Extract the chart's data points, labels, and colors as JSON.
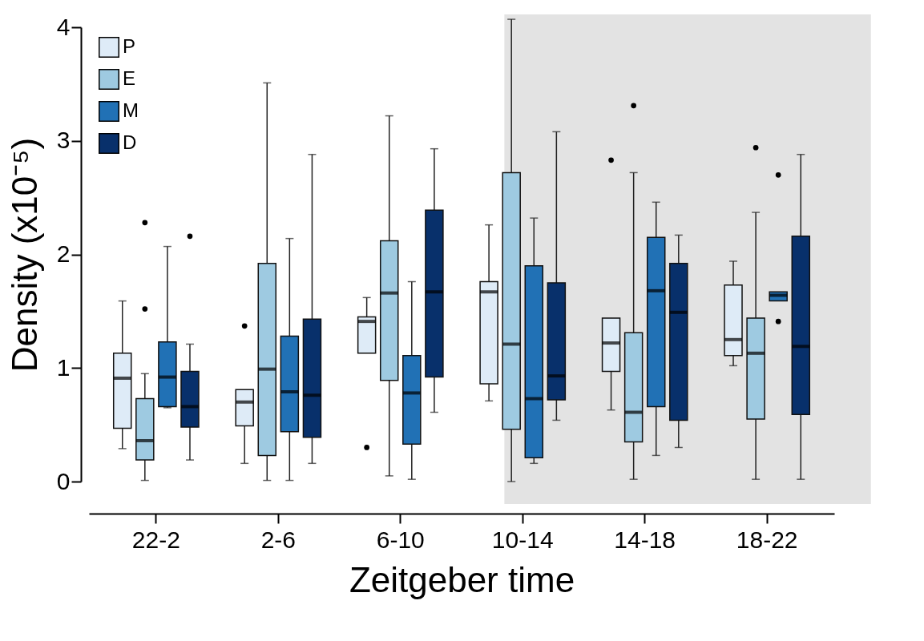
{
  "chart_data": {
    "type": "box",
    "xlabel": "Zeitgeber time",
    "ylabel": "Density (x10⁻⁵)",
    "categories": [
      "22-2",
      "2-6",
      "6-10",
      "10-14",
      "14-18",
      "18-22"
    ],
    "ylim": [
      0,
      4
    ],
    "yticks": [
      0,
      1,
      2,
      3,
      4
    ],
    "legend": "top left",
    "bands": [
      {
        "axis": "x",
        "from": "10-14",
        "to": "18-22",
        "color": "#e3e3e3"
      }
    ],
    "series": [
      {
        "name": "P",
        "color": "#deebf7",
        "boxes": [
          {
            "low": 0.29,
            "q1": 0.47,
            "median": 0.91,
            "q3": 1.13,
            "high": 1.59
          },
          {
            "low": 0.16,
            "q1": 0.49,
            "median": 0.7,
            "q3": 0.81,
            "high": 0.81,
            "outliers": [
              1.37
            ]
          },
          {
            "low": 1.13,
            "q1": 1.13,
            "median": 1.41,
            "q3": 1.45,
            "high": 1.62,
            "outliers": [
              0.3
            ]
          },
          {
            "low": 0.71,
            "q1": 0.86,
            "median": 1.67,
            "q3": 1.76,
            "high": 2.26
          },
          {
            "low": 0.63,
            "q1": 0.97,
            "median": 1.22,
            "q3": 1.44,
            "high": 1.44,
            "outliers": [
              2.83
            ]
          },
          {
            "low": 1.02,
            "q1": 1.11,
            "median": 1.25,
            "q3": 1.73,
            "high": 1.94
          }
        ]
      },
      {
        "name": "E",
        "color": "#9ecae1",
        "boxes": [
          {
            "low": 0.01,
            "q1": 0.19,
            "median": 0.36,
            "q3": 0.73,
            "high": 0.95,
            "outliers": [
              2.28,
              1.52
            ]
          },
          {
            "low": 0.01,
            "q1": 0.23,
            "median": 0.99,
            "q3": 1.92,
            "high": 3.51
          },
          {
            "low": 0.05,
            "q1": 0.89,
            "median": 1.66,
            "q3": 2.12,
            "high": 3.22
          },
          {
            "low": 0,
            "q1": 0.46,
            "median": 1.21,
            "q3": 2.72,
            "high": 4.07
          },
          {
            "low": 0.02,
            "q1": 0.35,
            "median": 0.61,
            "q3": 1.31,
            "high": 2.72,
            "outliers": [
              3.31
            ]
          },
          {
            "low": 0.02,
            "q1": 0.55,
            "median": 1.13,
            "q3": 1.44,
            "high": 2.37,
            "outliers": [
              2.94
            ]
          }
        ]
      },
      {
        "name": "M",
        "color": "#2171b5",
        "boxes": [
          {
            "low": 0.65,
            "q1": 0.66,
            "median": 0.92,
            "q3": 1.23,
            "high": 2.07
          },
          {
            "low": 0.01,
            "q1": 0.44,
            "median": 0.79,
            "q3": 1.28,
            "high": 2.14
          },
          {
            "low": 0.02,
            "q1": 0.33,
            "median": 0.78,
            "q3": 1.11,
            "high": 1.76
          },
          {
            "low": 0.16,
            "q1": 0.21,
            "median": 0.73,
            "q3": 1.9,
            "high": 2.32
          },
          {
            "low": 0.23,
            "q1": 0.66,
            "median": 1.68,
            "q3": 2.15,
            "high": 2.46
          },
          {
            "low": 1.59,
            "q1": 1.59,
            "median": 1.64,
            "q3": 1.67,
            "high": 1.67,
            "outliers": [
              2.7,
              1.41
            ]
          }
        ]
      },
      {
        "name": "D",
        "color": "#08306b",
        "boxes": [
          {
            "low": 0.19,
            "q1": 0.48,
            "median": 0.66,
            "q3": 0.97,
            "high": 1.21,
            "outliers": [
              2.16
            ]
          },
          {
            "low": 0.16,
            "q1": 0.39,
            "median": 0.76,
            "q3": 1.43,
            "high": 2.88
          },
          {
            "low": 0.61,
            "q1": 0.92,
            "median": 1.67,
            "q3": 2.39,
            "high": 2.93
          },
          {
            "low": 0.54,
            "q1": 0.72,
            "median": 0.93,
            "q3": 1.75,
            "high": 3.08
          },
          {
            "low": 0.3,
            "q1": 0.54,
            "median": 1.49,
            "q3": 1.92,
            "high": 2.17
          },
          {
            "low": 0.02,
            "q1": 0.59,
            "median": 1.19,
            "q3": 2.16,
            "high": 2.88
          }
        ]
      }
    ]
  }
}
